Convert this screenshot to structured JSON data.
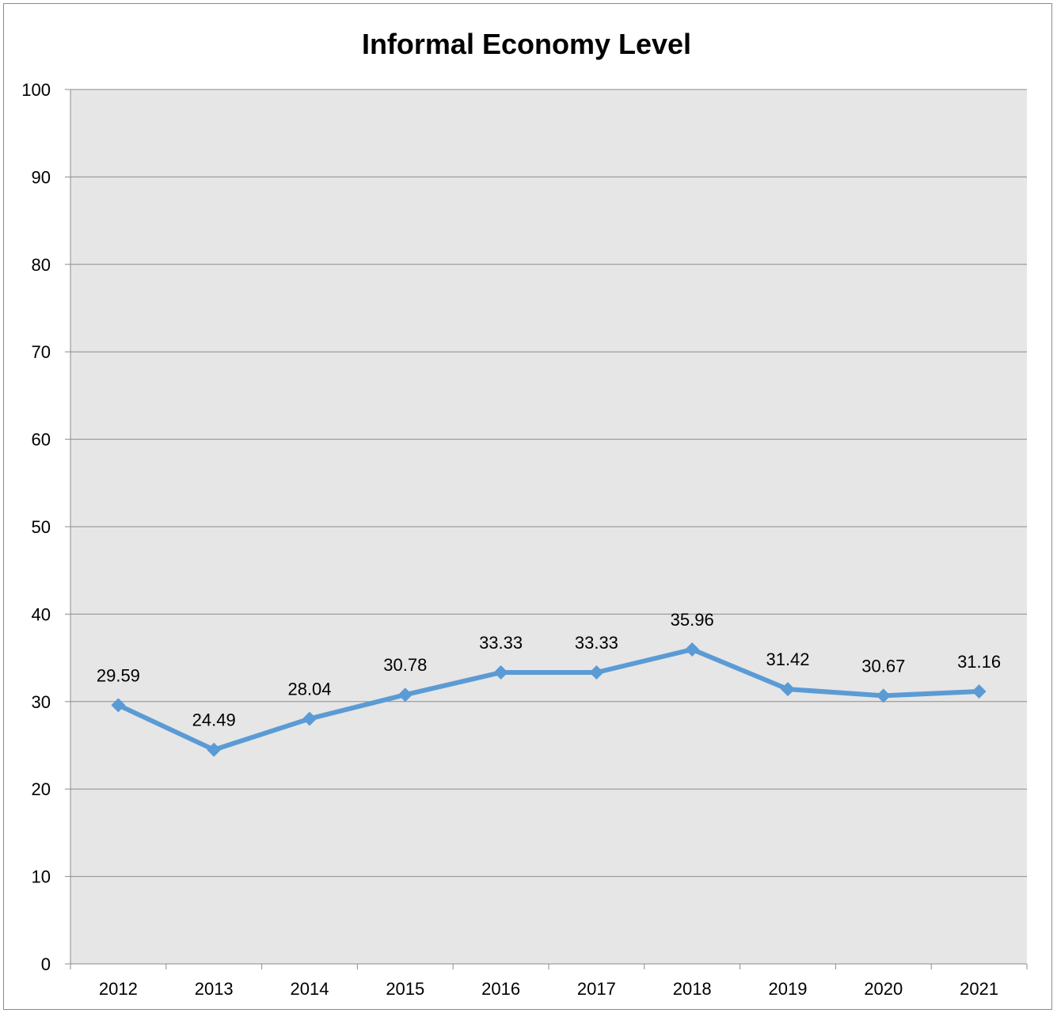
{
  "chart_data": {
    "type": "line",
    "title": "Informal Economy Level",
    "xlabel": "",
    "ylabel": "",
    "categories": [
      "2012",
      "2013",
      "2014",
      "2015",
      "2016",
      "2017",
      "2018",
      "2019",
      "2020",
      "2021"
    ],
    "series": [
      {
        "values": [
          29.59,
          24.49,
          28.04,
          30.78,
          33.33,
          33.33,
          35.96,
          31.42,
          30.67,
          31.16
        ],
        "data_labels": [
          "29.59",
          "24.49",
          "28.04",
          "30.78",
          "33.33",
          "33.33",
          "35.96",
          "31.42",
          "30.67",
          "31.16"
        ],
        "color": "#5b9bd5",
        "marker": "diamond"
      }
    ],
    "ylim": [
      0,
      100
    ],
    "yticks": [
      "0",
      "10",
      "20",
      "30",
      "40",
      "50",
      "60",
      "70",
      "80",
      "90",
      "100"
    ],
    "grid": true,
    "legend": "none",
    "colors": {
      "plot_background": "#e6e6e6",
      "gridline": "#8c8c8c",
      "line": "#5b9bd5"
    }
  }
}
